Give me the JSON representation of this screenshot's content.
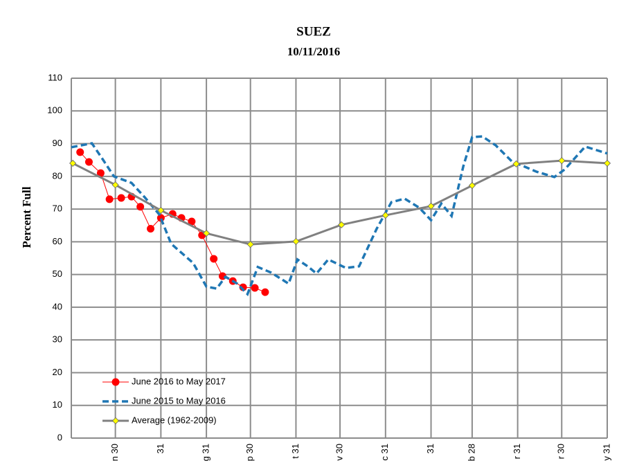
{
  "chart_data": {
    "type": "line",
    "title": "SUEZ",
    "subtitle": "10/11/2016",
    "y_label": "Percent Full",
    "xlim": [
      0,
      365
    ],
    "ylim": [
      0,
      110
    ],
    "xticks": [
      {
        "value": 30,
        "label": "n 30"
      },
      {
        "value": 61,
        "label": "31"
      },
      {
        "value": 92,
        "label": "g 31"
      },
      {
        "value": 122,
        "label": "p 30"
      },
      {
        "value": 153,
        "label": "t 31"
      },
      {
        "value": 183,
        "label": "v 30"
      },
      {
        "value": 214,
        "label": "c 31"
      },
      {
        "value": 245,
        "label": "31"
      },
      {
        "value": 273,
        "label": "b 28"
      },
      {
        "value": 304,
        "label": "r 31"
      },
      {
        "value": 334,
        "label": "r 30"
      },
      {
        "value": 365,
        "label": "y 31"
      }
    ],
    "yticks": [
      0,
      10,
      20,
      30,
      40,
      50,
      60,
      70,
      80,
      90,
      100,
      110
    ],
    "grid": true,
    "legend": "lower left",
    "series": [
      {
        "name": "June 2016 to May 2017",
        "color": "#ff0000",
        "marker": "circle",
        "marker_color": "#ff0000",
        "dash": false,
        "width": 1,
        "x": [
          6,
          12,
          20,
          26,
          34,
          41,
          47,
          54,
          61,
          69,
          75,
          82,
          89,
          97,
          103,
          110,
          117,
          125,
          132
        ],
        "values": [
          87.4,
          84.4,
          81,
          73,
          73.4,
          73.8,
          70.7,
          64,
          67.3,
          68.5,
          67.3,
          66.2,
          62,
          54.8,
          49.5,
          48,
          46.1,
          45.9,
          44.6
        ]
      },
      {
        "name": "June 2015 to May 2016",
        "color": "#1f77b4",
        "marker": "none",
        "dash": true,
        "width": 3.5,
        "x": [
          0,
          14,
          22,
          29,
          41,
          50,
          60,
          68,
          83,
          92,
          99,
          105,
          113,
          120,
          127,
          136,
          148,
          154,
          161,
          167,
          175,
          187,
          196,
          208,
          218,
          227,
          237,
          245,
          252,
          259,
          267,
          273,
          280,
          289,
          300,
          317,
          329,
          336,
          350,
          365
        ],
        "values": [
          88.9,
          90.1,
          84.8,
          80,
          78,
          73.6,
          68.3,
          59.4,
          53.5,
          46.3,
          45.7,
          49.3,
          47.2,
          44,
          52.3,
          50.6,
          47.2,
          54.6,
          52.5,
          50.3,
          54.6,
          52,
          52.5,
          64,
          72.1,
          73.2,
          70.4,
          66.6,
          71.7,
          67.9,
          83.1,
          92,
          92.2,
          89.5,
          84.6,
          81.4,
          79.8,
          82.1,
          89.1,
          87
        ]
      },
      {
        "name": "Average (1962-2009)",
        "color": "#808080",
        "marker": "diamond",
        "marker_color": "#ffff00",
        "dash": false,
        "width": 3,
        "x": [
          1,
          30,
          61,
          92,
          122,
          153,
          184,
          214,
          245,
          273,
          303,
          334,
          365
        ],
        "values": [
          84,
          77.4,
          69.6,
          62.6,
          59.2,
          60.1,
          65.2,
          68.1,
          70.9,
          77.2,
          83.8,
          84.8,
          84
        ]
      }
    ]
  }
}
